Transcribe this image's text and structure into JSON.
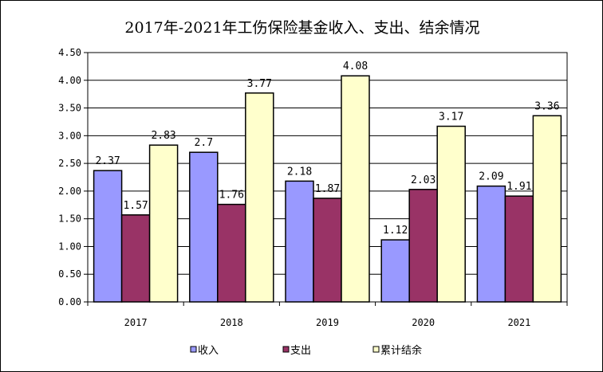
{
  "chart_data": {
    "type": "bar",
    "title": "2017年-2021年工伤保险基金收入、支出、结余情况",
    "categories": [
      "2017",
      "2018",
      "2019",
      "2020",
      "2021"
    ],
    "series": [
      {
        "name": "收入",
        "values": [
          2.37,
          2.7,
          2.18,
          1.12,
          2.09
        ],
        "labels": [
          "2.37",
          "2.7",
          "2.18",
          "1.12",
          "2.09"
        ],
        "color": "#9999ff"
      },
      {
        "name": "支出",
        "values": [
          1.57,
          1.76,
          1.87,
          2.03,
          1.91
        ],
        "labels": [
          "1.57",
          "1.76",
          "1.87",
          "2.03",
          "1.91"
        ],
        "color": "#993366"
      },
      {
        "name": "累计结余",
        "values": [
          2.83,
          3.77,
          4.08,
          3.17,
          3.36
        ],
        "labels": [
          "2.83",
          "3.77",
          "4.08",
          "3.17",
          "3.36"
        ],
        "color": "#ffffcc"
      }
    ],
    "yticks": [
      "0.00",
      "0.50",
      "1.00",
      "1.50",
      "2.00",
      "2.50",
      "3.00",
      "3.50",
      "4.00",
      "4.50"
    ],
    "ylim": [
      0,
      4.5
    ],
    "grid": true,
    "legend": "bottom"
  }
}
